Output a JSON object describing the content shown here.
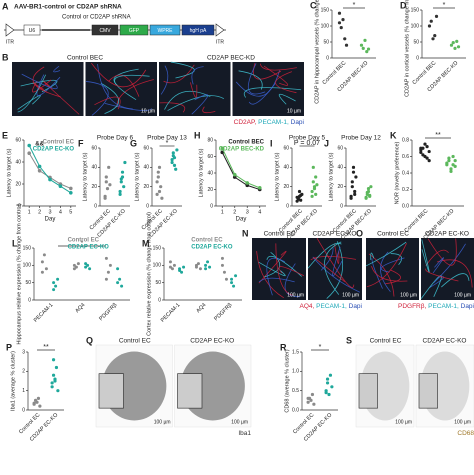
{
  "panel_A": {
    "label": "A",
    "title": "AAV-BR1-control or CD2AP shRNA",
    "insert": "Control or CD2AP shRNA",
    "construct": [
      "ITR",
      "U6",
      "CMV",
      "GFP",
      "WPRE",
      "hgH pA",
      "ITR"
    ]
  },
  "images": [
    {
      "label": "B",
      "style": "fluorescence",
      "count": 4,
      "captions": [
        "Control BEC",
        "CD2AP BEC-KD"
      ],
      "scale": [
        "10 µm",
        "10 µm"
      ],
      "stain": [
        "CD2AP, ",
        "PECAM-1, ",
        "Dapi"
      ],
      "stain_colors": [
        "#d0213a",
        "#21a9b8",
        "#2a4fb5"
      ]
    },
    {
      "label": "N",
      "style": "fluorescence",
      "count": 2,
      "captions": [
        "Control EC",
        "CD2AP EC-KO"
      ],
      "scale": [
        "100 µm",
        "100 µm"
      ],
      "stain": [
        "AQ4, ",
        "PECAM-1, ",
        "Dapi"
      ],
      "stain_colors": [
        "#d0213a",
        "#21a9b8",
        "#2a4fb5"
      ]
    },
    {
      "label": "O",
      "style": "fluorescence",
      "count": 2,
      "captions": [
        "Control EC",
        "CD2AP EC-KO"
      ],
      "scale": [
        "100 µm",
        "100 µm"
      ],
      "stain": [
        "PDGFRβ, ",
        "PECAM-1, ",
        "Dapi"
      ],
      "stain_colors": [
        "#d0213a",
        "#21a9b8",
        "#2a4fb5"
      ]
    },
    {
      "label": "Q",
      "style": "brightfield",
      "count": 2,
      "captions": [
        "Control EC",
        "CD2AP EC-KO"
      ],
      "scale": [
        "100 µm",
        "100 µm"
      ],
      "stain": [
        "Iba1"
      ],
      "stain_colors": [
        "#333333"
      ]
    },
    {
      "label": "S",
      "style": "brightfield",
      "count": 2,
      "captions": [
        "Control EC",
        "CD2AP EC-KO"
      ],
      "scale": [
        "100 µm",
        "100 µm"
      ],
      "stain": [
        "CD68"
      ],
      "stain_colors": [
        "#a0782a"
      ]
    }
  ],
  "plots": [
    {
      "label": "C",
      "type": "dot",
      "ylabel": "CD2AP in hippocampal vessels (% change from controls)",
      "categories": [
        "Control BEC",
        "CD2AP BEC-KD"
      ],
      "colors": [
        "#333333",
        "#5cb85c"
      ],
      "points": [
        [
          140,
          95,
          120,
          60,
          40,
          110
        ],
        [
          40,
          30,
          55,
          20,
          28
        ]
      ],
      "ylim": [
        0,
        150
      ],
      "yticks": [
        0,
        50,
        100,
        150
      ],
      "sig": "*"
    },
    {
      "label": "D",
      "type": "dot",
      "ylabel": "CD2AP in cortical vessels (% change from controls)",
      "categories": [
        "Control BEC",
        "CD2AP BEC-KD"
      ],
      "colors": [
        "#333333",
        "#5cb85c"
      ],
      "points": [
        [
          100,
          115,
          60,
          70,
          130
        ],
        [
          40,
          48,
          30,
          52,
          35
        ]
      ],
      "ylim": [
        0,
        150
      ],
      "yticks": [
        0,
        50,
        100,
        150
      ],
      "sig": "*"
    },
    {
      "label": "E",
      "type": "line",
      "ylabel": "Latency to target (s)",
      "xlabel": "Day",
      "x": [
        1,
        2,
        3,
        4,
        5
      ],
      "xlim": [
        0.5,
        5.5
      ],
      "ylim": [
        0,
        60
      ],
      "yticks": [
        0,
        20,
        40,
        60
      ],
      "annotation": "&&",
      "series": [
        {
          "name": "Control EC",
          "color": "#8a8a8a",
          "values": [
            48,
            32,
            26,
            20,
            16
          ]
        },
        {
          "name": "CD2AP EC-KO",
          "color": "#1fa89b",
          "values": [
            55,
            36,
            24,
            18,
            12
          ]
        }
      ]
    },
    {
      "label": "F",
      "type": "dot",
      "title": "Probe Day 6",
      "ylabel": "Latency to target (s)",
      "categories": [
        "Control EC",
        "CD2AP EC-KO"
      ],
      "colors": [
        "#8a8a8a",
        "#1fa89b"
      ],
      "points": [
        [
          10,
          25,
          18,
          40,
          22,
          8,
          30
        ],
        [
          12,
          28,
          35,
          20,
          45,
          15,
          25,
          30
        ]
      ],
      "ylim": [
        0,
        60
      ],
      "yticks": [
        0,
        20,
        40,
        60
      ]
    },
    {
      "label": "G",
      "type": "dot",
      "title": "Probe Day 13",
      "ylabel": "Latency to target (s)",
      "categories": [
        "Control EC",
        "CD2AP EC-KO"
      ],
      "colors": [
        "#8a8a8a",
        "#1fa89b"
      ],
      "points": [
        [
          12,
          30,
          40,
          20,
          8,
          25,
          35,
          15
        ],
        [
          45,
          55,
          50,
          38,
          58,
          48,
          52,
          42
        ]
      ],
      "ylim": [
        0,
        60
      ],
      "yticks": [
        0,
        20,
        40,
        60
      ],
      "sig": "*"
    },
    {
      "label": "H",
      "type": "line",
      "ylabel": "Latency to target (s)",
      "xlabel": "Day",
      "x": [
        1,
        2,
        3,
        4
      ],
      "xlim": [
        0.5,
        4.5
      ],
      "ylim": [
        0,
        80
      ],
      "yticks": [
        0,
        20,
        40,
        60,
        80
      ],
      "series": [
        {
          "name": "Control BEC",
          "color": "#222222",
          "values": [
            65,
            35,
            25,
            20
          ]
        },
        {
          "name": "CD2AP BEC-KD",
          "color": "#5cb85c",
          "values": [
            70,
            38,
            28,
            22
          ]
        }
      ]
    },
    {
      "label": "I",
      "type": "dot",
      "title": "Probe Day 5",
      "ylabel": "Latency to target (s)",
      "categories": [
        "Control BEC",
        "CD2AP BEC-KD"
      ],
      "colors": [
        "#222222",
        "#5cb85c"
      ],
      "points": [
        [
          5,
          8,
          10,
          6,
          12,
          9,
          7,
          15,
          11
        ],
        [
          10,
          25,
          18,
          30,
          22,
          15,
          40,
          20,
          12
        ]
      ],
      "ylim": [
        0,
        60
      ],
      "yticks": [
        0,
        20,
        40,
        60
      ],
      "sig": "P = 0.07"
    },
    {
      "label": "J",
      "type": "dot",
      "title": "Probe Day 12",
      "ylabel": "Latency to target (s)",
      "categories": [
        "Control BEC",
        "CD2AP BEC-KD"
      ],
      "colors": [
        "#222222",
        "#5cb85c"
      ],
      "points": [
        [
          10,
          25,
          40,
          15,
          30,
          8,
          20,
          35,
          12
        ],
        [
          8,
          12,
          15,
          10,
          20,
          9,
          14,
          18,
          11
        ]
      ],
      "ylim": [
        0,
        60
      ],
      "yticks": [
        0,
        20,
        40,
        60
      ]
    },
    {
      "label": "K",
      "type": "dot",
      "ylabel": "NOR (novelty preference)",
      "categories": [
        "Control BEC",
        "CD2AP BEC-KD"
      ],
      "colors": [
        "#222222",
        "#5cb85c"
      ],
      "points": [
        [
          0.65,
          0.7,
          0.6,
          0.72,
          0.55,
          0.68,
          0.62,
          0.75,
          0.58,
          0.66,
          0.7
        ],
        [
          0.5,
          0.55,
          0.45,
          0.6,
          0.48,
          0.52,
          0.58,
          0.42,
          0.5,
          0.55
        ]
      ],
      "ylim": [
        0,
        0.8
      ],
      "yticks": [
        {
          "value": 0,
          "label": "0.0"
        },
        0.2,
        0.4,
        0.6,
        0.8
      ],
      "sig": "**"
    },
    {
      "label": "L",
      "type": "group",
      "ylabel": "Hippocampus relative expression (% change from control)",
      "categories": [
        "PECAM-1",
        "AQ4",
        "PDGFRβ"
      ],
      "ylim": [
        0,
        150
      ],
      "yticks": [
        0,
        50,
        100,
        150
      ],
      "sig": "*",
      "series": [
        {
          "name": "Control EC",
          "color": "#8a8a8a",
          "values": [
            [
              110,
              130,
              90,
              80
            ],
            [
              100,
              95,
              105,
              90
            ],
            [
              120,
              80,
              100,
              60
            ]
          ]
        },
        {
          "name": "CD2AP EC-KO",
          "color": "#1fa89b",
          "values": [
            [
              50,
              40,
              60,
              30
            ],
            [
              95,
              100,
              90,
              105
            ],
            [
              90,
              60,
              40,
              50
            ]
          ]
        }
      ]
    },
    {
      "label": "M",
      "type": "group",
      "ylabel": "Cortex relative expression (% change from control)",
      "categories": [
        "PECAM-1",
        "AQ4",
        "PDGFRβ"
      ],
      "ylim": [
        0,
        150
      ],
      "yticks": [
        0,
        50,
        100,
        150
      ],
      "series": [
        {
          "name": "Control EC",
          "color": "#8a8a8a",
          "values": [
            [
              110,
              90,
              100,
              95
            ],
            [
              100,
              105,
              90,
              95
            ],
            [
              120,
              80,
              60,
              100
            ]
          ]
        },
        {
          "name": "CD2AP EC-KO",
          "color": "#1fa89b",
          "values": [
            [
              90,
              80,
              95,
              85
            ],
            [
              100,
              110,
              95,
              90
            ],
            [
              60,
              40,
              70,
              50
            ]
          ]
        }
      ]
    },
    {
      "label": "P",
      "type": "dot",
      "ylabel": "Iba1 (average % cluster)",
      "categories": [
        "Control EC",
        "CD2AP EC-KO"
      ],
      "colors": [
        "#8a8a8a",
        "#1fa89b"
      ],
      "points": [
        [
          0.3,
          0.5,
          0.4,
          0.6,
          0.2,
          0.35
        ],
        [
          1.2,
          1.8,
          1.5,
          2.2,
          1.0,
          1.4,
          2.6,
          1.6
        ]
      ],
      "ylim": [
        0,
        3
      ],
      "yticks": [
        0,
        1,
        2,
        3
      ],
      "sig": "**"
    },
    {
      "label": "R",
      "type": "dot",
      "ylabel": "CD68 (average % cluster)",
      "categories": [
        "Control EC",
        "CD2AP EC-KO"
      ],
      "colors": [
        "#8a8a8a",
        "#1fa89b"
      ],
      "points": [
        [
          0.2,
          0.3,
          0.25,
          0.4,
          0.15,
          0.3
        ],
        [
          0.5,
          0.7,
          0.4,
          0.9,
          0.6,
          0.45,
          0.8
        ]
      ],
      "ylim": [
        0,
        1.5
      ],
      "yticks": [
        {
          "value": 0,
          "label": "0.0"
        },
        0.5,
        {
          "value": 1,
          "label": "1.0"
        },
        1.5
      ],
      "sig": "*"
    }
  ]
}
